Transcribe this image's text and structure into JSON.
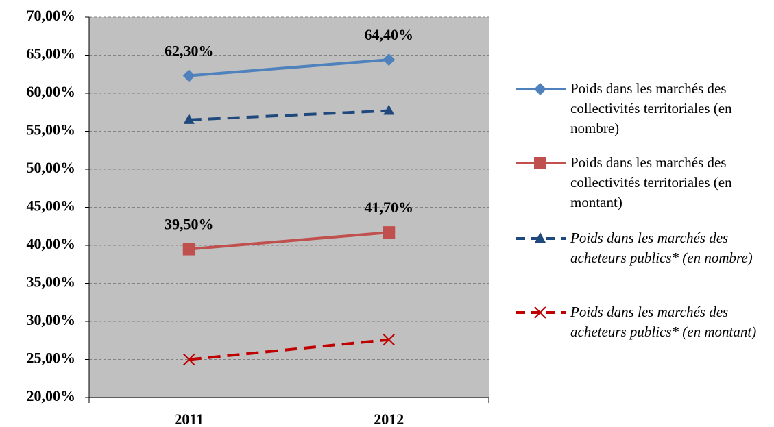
{
  "chart_data": {
    "type": "line",
    "categories": [
      "2011",
      "2012"
    ],
    "ylim": [
      20,
      70
    ],
    "yticks": [
      {
        "value": 20,
        "label": "20,00%"
      },
      {
        "value": 25,
        "label": "25,00%"
      },
      {
        "value": 30,
        "label": "30,00%"
      },
      {
        "value": 35,
        "label": "35,00%"
      },
      {
        "value": 40,
        "label": "40,00%"
      },
      {
        "value": 45,
        "label": "45,00%"
      },
      {
        "value": 50,
        "label": "50,00%"
      },
      {
        "value": 55,
        "label": "55,00%"
      },
      {
        "value": 60,
        "label": "60,00%"
      },
      {
        "value": 65,
        "label": "65,00%"
      },
      {
        "value": 70,
        "label": "70,00%"
      }
    ],
    "grid": true,
    "plot_background": "#c0c0c0",
    "legend": "right",
    "series": [
      {
        "name": "Poids dans les marchés des collectivités territoriales (en nombre)",
        "color": "#4f81bd",
        "marker": "diamond",
        "dashed": false,
        "font_style": "normal",
        "values": [
          62.3,
          64.4
        ],
        "value_labels": [
          "62,30%",
          "64,40%"
        ]
      },
      {
        "name": "Poids dans les marchés des collectivités territoriales (en montant)",
        "color": "#c0504d",
        "marker": "square",
        "dashed": false,
        "font_style": "normal",
        "values": [
          39.5,
          41.7
        ],
        "value_labels": [
          "39,50%",
          "41,70%"
        ]
      },
      {
        "name": "Poids dans les marchés des acheteurs publics* (en nombre)",
        "color": "#1f497d",
        "marker": "triangle",
        "dashed": true,
        "font_style": "italic",
        "values": [
          56.5,
          57.7
        ]
      },
      {
        "name": "Poids dans les marchés des acheteurs publics* (en montant)",
        "color": "#c00000",
        "marker": "x",
        "dashed": true,
        "font_style": "italic",
        "values": [
          25.0,
          27.6
        ]
      }
    ]
  }
}
